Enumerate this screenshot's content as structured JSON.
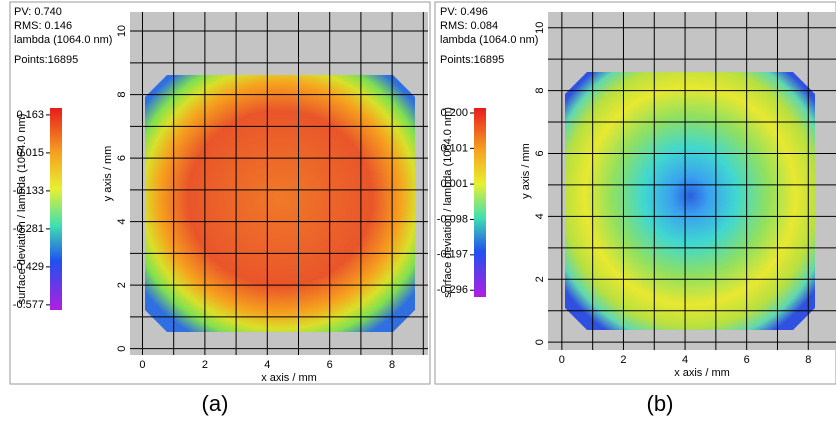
{
  "chart_data": [
    {
      "type": "heatmap",
      "stats": [
        "PV:   0.740",
        "RMS:  0.146",
        "lambda (1064.0 nm)",
        "Points:16895"
      ],
      "colorbar_label": "surface deviation / lambda (1064.0 nm)",
      "clim": [
        -0.597,
        0.19
      ],
      "cticks": [
        0.163,
        0.015,
        -0.133,
        -0.281,
        -0.429,
        -0.577
      ],
      "x_label": "x axis / mm",
      "y_label": "y axis / mm",
      "xlim": [
        -0.4,
        9.15
      ],
      "ylim": [
        -0.2,
        10.6
      ],
      "xticks": [
        0,
        2,
        4,
        6,
        8
      ],
      "yticks": [
        0,
        2,
        4,
        6,
        8,
        10
      ],
      "x_minor_ticks": [
        1,
        3,
        5,
        7,
        9
      ],
      "y_minor_ticks": [
        1,
        3,
        5,
        7,
        9
      ],
      "caption": "(a)"
    },
    {
      "type": "heatmap",
      "stats": [
        "PV:   0.496",
        "RMS:  0.084",
        "lambda (1064.0 nm)",
        "Points:16895"
      ],
      "colorbar_label": "surface deviation / lambda (1064.0 nm)",
      "clim": [
        -0.315,
        0.214
      ],
      "cticks": [
        {
          "value": 0.2,
          "label": "0.200"
        },
        0.101,
        0.001,
        -0.098,
        -0.197,
        -0.296
      ],
      "x_label": "x axis / mm",
      "y_label": "y axis / mm",
      "xlim": [
        -0.45,
        8.9
      ],
      "ylim": [
        -0.25,
        10.5
      ],
      "xticks": [
        0,
        2,
        4,
        6,
        8
      ],
      "yticks": [
        0,
        2,
        4,
        6,
        8,
        10
      ],
      "x_minor_ticks": [
        1,
        3,
        5,
        7
      ],
      "y_minor_ticks": [
        1,
        3,
        5,
        7,
        9
      ],
      "caption": "(b)"
    }
  ]
}
